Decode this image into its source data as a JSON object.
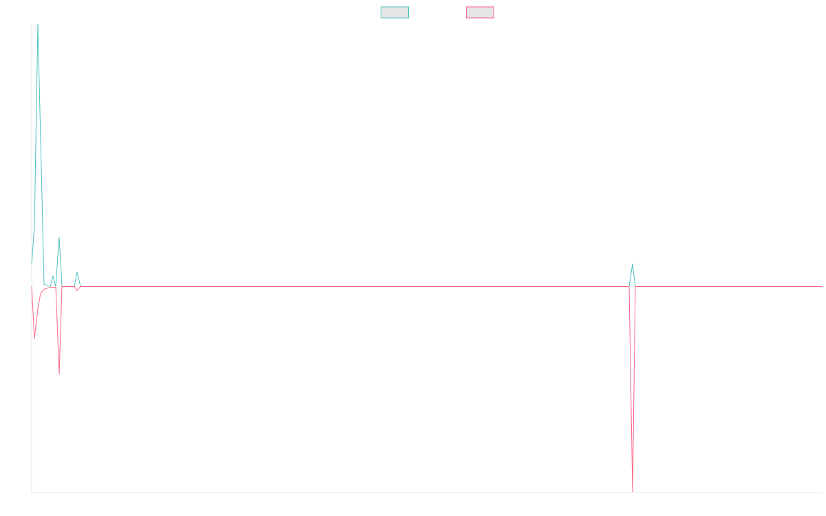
{
  "chart_data": {
    "type": "line",
    "xlim": [
      0,
      1149
    ],
    "ylim": [
      -300,
      382
    ],
    "grid": false,
    "legend": "top",
    "series": [
      {
        "color": "#4bc0c0",
        "x": [
          0,
          4,
          9,
          18,
          27,
          31,
          35,
          40,
          44,
          62,
          66,
          71,
          868,
          873,
          877,
          1149
        ],
        "values": [
          32,
          89,
          382,
          3,
          0,
          15,
          0,
          72,
          0,
          0,
          21,
          0,
          0,
          33,
          0,
          0
        ]
      },
      {
        "color": "#ff6384",
        "x": [
          0,
          4,
          9,
          13,
          18,
          27,
          35,
          40,
          44,
          62,
          66,
          71,
          868,
          873,
          877,
          1149
        ],
        "values": [
          0,
          -76,
          -32,
          -10,
          -4,
          -1,
          -1,
          -128,
          0,
          0,
          -6,
          0,
          0,
          -299,
          0,
          0
        ]
      }
    ]
  }
}
